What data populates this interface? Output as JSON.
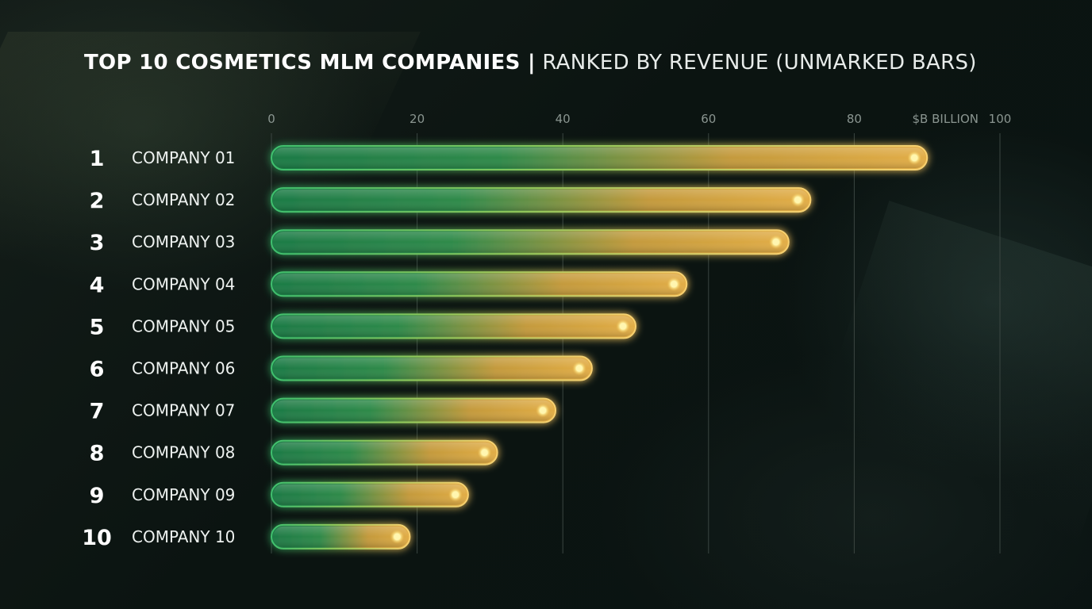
{
  "title": {
    "bold": "TOP 10 COSMETICS MLM COMPANIES |",
    "light": "RANKED BY REVENUE (UNMARKED BARS)"
  },
  "colors": {
    "bar_start": "#1f8a4c",
    "bar_end": "#e8b040",
    "glow": "#f0c458",
    "dot": "#fff6b0",
    "grid": "#3a4541"
  },
  "chart_data": {
    "type": "bar",
    "orientation": "horizontal",
    "title": "TOP 10 COSMETICS MLM COMPANIES | RANKED BY REVENUE (UNMARKED BARS)",
    "xlabel": "$B BILLION",
    "xlim": [
      0,
      100
    ],
    "xticks": [
      0,
      20,
      40,
      60,
      80,
      100
    ],
    "grid": true,
    "ranks": [
      "1",
      "2",
      "3",
      "4",
      "5",
      "6",
      "7",
      "8",
      "9",
      "10"
    ],
    "categories": [
      "COMPANY 01",
      "COMPANY 02",
      "COMPANY 03",
      "COMPANY 04",
      "COMPANY 05",
      "COMPANY 06",
      "COMPANY 07",
      "COMPANY 08",
      "COMPANY 09",
      "COMPANY 10"
    ],
    "values": [
      90,
      74,
      71,
      57,
      50,
      44,
      39,
      31,
      27,
      19
    ]
  }
}
